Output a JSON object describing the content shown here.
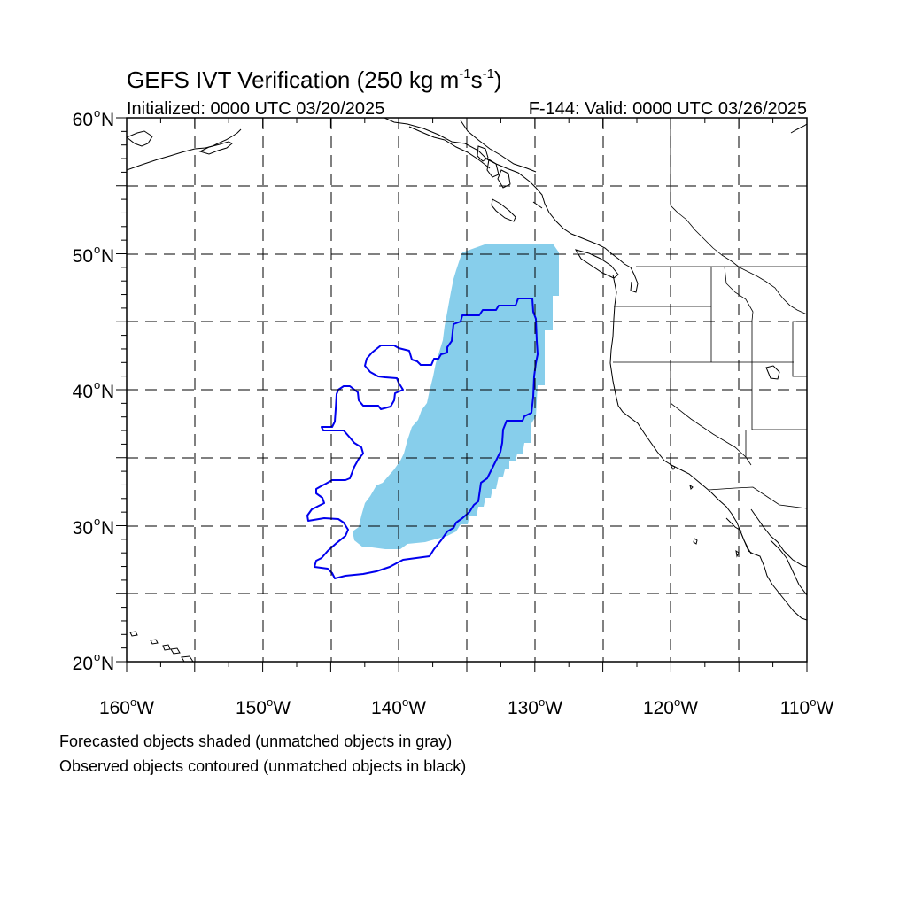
{
  "title": {
    "main": "GEFS IVT Verification (250 kg m",
    "sup1": "-1",
    "mid": "s",
    "sup2": "-1",
    "close": ")"
  },
  "subtitle_left": "Initialized: 0000 UTC 03/20/2025",
  "subtitle_right": "F-144: Valid: 0000 UTC 03/26/2025",
  "lat_labels": [
    {
      "deg": "60",
      "unit": "o",
      "hemi": "N"
    },
    {
      "deg": "50",
      "unit": "o",
      "hemi": "N"
    },
    {
      "deg": "40",
      "unit": "o",
      "hemi": "N"
    },
    {
      "deg": "30",
      "unit": "o",
      "hemi": "N"
    },
    {
      "deg": "20",
      "unit": "o",
      "hemi": "N"
    }
  ],
  "lon_labels": [
    {
      "deg": "160",
      "unit": "o",
      "hemi": "W"
    },
    {
      "deg": "150",
      "unit": "o",
      "hemi": "W"
    },
    {
      "deg": "140",
      "unit": "o",
      "hemi": "W"
    },
    {
      "deg": "130",
      "unit": "o",
      "hemi": "W"
    },
    {
      "deg": "120",
      "unit": "o",
      "hemi": "W"
    },
    {
      "deg": "110",
      "unit": "o",
      "hemi": "W"
    }
  ],
  "legend_line1": "Forecasted objects shaded (unmatched objects in gray)",
  "legend_line2": "Observed objects contoured (unmatched objects in black)",
  "colors": {
    "forecast_fill": "#87ceeb",
    "observed_contour": "#0000ee",
    "grid": "#000000",
    "coast": "#000000"
  },
  "extent": {
    "lon": [
      -160,
      -110
    ],
    "lat": [
      20,
      60
    ]
  }
}
